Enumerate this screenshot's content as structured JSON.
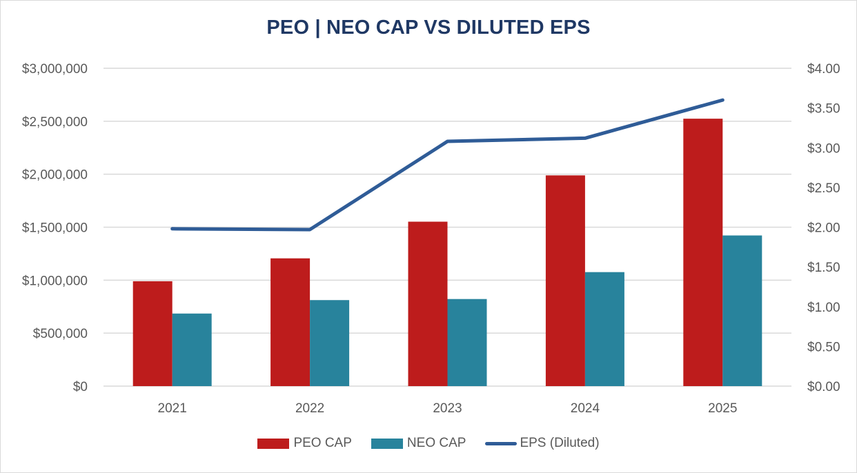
{
  "chart_data": {
    "type": "bar",
    "title": "PEO | NEO CAP VS DILUTED EPS",
    "xlabel": "",
    "ylabel": "",
    "y2label": "",
    "categories": [
      "2021",
      "2022",
      "2023",
      "2024",
      "2025"
    ],
    "series": [
      {
        "name": "PEO CAP",
        "type": "bar",
        "axis": "left",
        "color": "#bd1c1c",
        "values": [
          990000,
          1206000,
          1552000,
          1989000,
          2524000
        ]
      },
      {
        "name": "NEO CAP",
        "type": "bar",
        "axis": "left",
        "color": "#28839c",
        "values": [
          685000,
          812000,
          822000,
          1076000,
          1422000
        ]
      },
      {
        "name": "EPS (Diluted)",
        "type": "line",
        "axis": "right",
        "color": "#2f5c97",
        "values": [
          1.98,
          1.97,
          3.08,
          3.12,
          3.6
        ]
      }
    ],
    "ylim": [
      0,
      3000000
    ],
    "y2lim": [
      0,
      4
    ],
    "yticks": [
      "$0",
      "$500,000",
      "$1,000,000",
      "$1,500,000",
      "$2,000,000",
      "$2,500,000",
      "$3,000,000"
    ],
    "y2ticks": [
      "$0.00",
      "$0.50",
      "$1.00",
      "$1.50",
      "$2.00",
      "$2.50",
      "$3.00",
      "$3.50",
      "$4.00"
    ],
    "grid": true,
    "legend_position": "bottom"
  }
}
